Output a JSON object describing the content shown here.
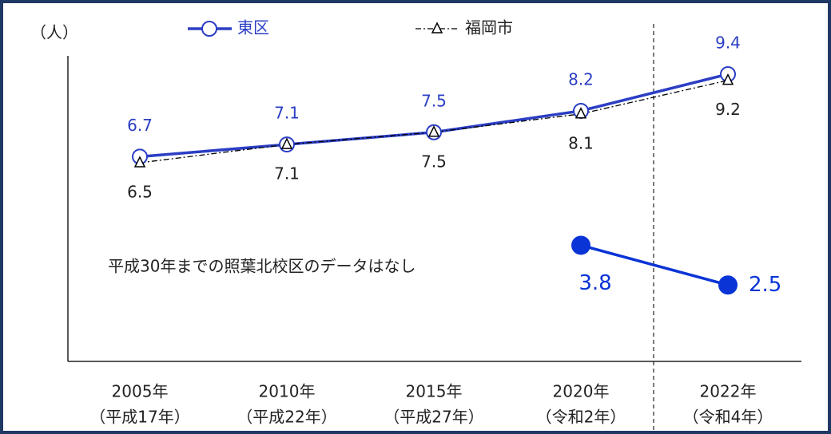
{
  "chart_data": {
    "type": "line",
    "y_label": "（人）",
    "annotation": "平成30年までの照葉北校区のデータはなし",
    "categories": [
      [
        "2005年",
        "（平成17年）"
      ],
      [
        "2010年",
        "（平成22年）"
      ],
      [
        "2015年",
        "（平成27年）"
      ],
      [
        "2020年",
        "（令和2年）"
      ],
      [
        "2022年",
        "（令和4年）"
      ]
    ],
    "ylim": [
      0,
      10
    ],
    "series": [
      {
        "name": "東区",
        "color": "#2b3ec4",
        "marker": "circle-open",
        "line_style": "solid",
        "values": [
          6.7,
          7.1,
          7.5,
          8.2,
          9.4
        ]
      },
      {
        "name": "福岡市",
        "color": "#000000",
        "marker": "triangle-open",
        "line_style": "dash-dot",
        "values": [
          6.5,
          7.1,
          7.5,
          8.1,
          9.2
        ]
      },
      {
        "color": "#0a34d6",
        "marker": "circle-filled",
        "line_style": "solid",
        "values": [
          null,
          null,
          null,
          3.8,
          2.5
        ]
      }
    ]
  }
}
